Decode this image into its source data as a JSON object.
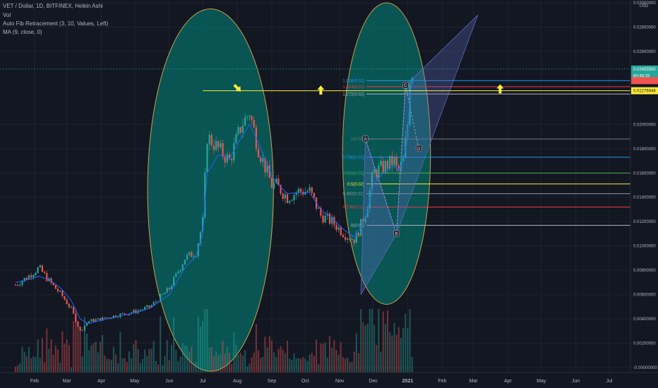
{
  "header": {
    "title": "VET / Dollar, 1D, BITFINEX, Heikin Ashi",
    "indicators": [
      "Vol",
      "Auto Fib Retracement (3, 10, Values, Left)",
      "MA (9, close, 0)"
    ]
  },
  "axis": {
    "currency": "USD",
    "price_ticks": [
      "0.03000000",
      "0.02800000",
      "0.02600000",
      "0.02000000",
      "0.01800000",
      "0.01600000",
      "0.01400000",
      "0.01200000",
      "0.01000000",
      "0.00800000",
      "0.00600000",
      "0.00400000",
      "0.00200000",
      "-0.00000000"
    ],
    "month_ticks": [
      "Feb",
      "Mar",
      "Apr",
      "May",
      "Jun",
      "Jul",
      "Aug",
      "Sep",
      "Oct",
      "Nov",
      "Dec",
      "2021",
      "Feb",
      "Mar",
      "Apr",
      "May",
      "Jun",
      "Jul"
    ]
  },
  "price_tags": [
    {
      "text": "0.02455500",
      "color": "#26a69a"
    },
    {
      "text": "60:48:33",
      "color": "#26a69a"
    },
    {
      "text": "",
      "color": "#ef5350"
    },
    {
      "text": "0.02276948",
      "color": "#ffeb3b"
    }
  ],
  "fib_levels": [
    {
      "label": "1.618(0.02)",
      "price": 0.0236,
      "color": "#2196f3"
    },
    {
      "label": "1.414(0.02)",
      "price": 0.0231,
      "color": "#f23645"
    },
    {
      "label": "1.272(0.02)",
      "price": 0.0225,
      "color": "#b2b5be"
    },
    {
      "label": "1(0.02)",
      "price": 0.0188,
      "color": "#787b86"
    },
    {
      "label": "0.786(0.02)",
      "price": 0.0173,
      "color": "#2196f3"
    },
    {
      "label": "0.618(0.02)",
      "price": 0.016,
      "color": "#4caf50"
    },
    {
      "label": "0.5(0.02)",
      "price": 0.0151,
      "color": "#ffeb3b"
    },
    {
      "label": "0.382(0.01)",
      "price": 0.0143,
      "color": "#9598a1"
    },
    {
      "label": "0.236(0.01)",
      "price": 0.0132,
      "color": "#f23645"
    },
    {
      "label": "0(0.01)",
      "price": 0.0117,
      "color": "#b2b5be"
    }
  ],
  "pattern_points": [
    "A",
    "B",
    "C",
    "D"
  ],
  "colors": {
    "background": "#131722",
    "up": "#26a69a",
    "down": "#ef5350",
    "highlight": "#00897b",
    "resistance": "#ffeb3b",
    "arrow": "#ffeb3b",
    "pattern": "#5c6bc0"
  },
  "chart_data": {
    "type": "candlestick",
    "ylim": [
      0,
      0.03
    ],
    "volume_ylim": [
      0,
      1
    ],
    "x": [
      "2020-01-15",
      "2020-01-25",
      "2020-02-05",
      "2020-02-15",
      "2020-02-25",
      "2020-03-05",
      "2020-03-13",
      "2020-03-20",
      "2020-04-01",
      "2020-04-15",
      "2020-05-01",
      "2020-05-15",
      "2020-06-01",
      "2020-06-15",
      "2020-06-25",
      "2020-07-01",
      "2020-07-05",
      "2020-07-15",
      "2020-07-25",
      "2020-08-05",
      "2020-08-12",
      "2020-08-20",
      "2020-09-01",
      "2020-09-05",
      "2020-09-15",
      "2020-09-25",
      "2020-10-05",
      "2020-10-15",
      "2020-10-25",
      "2020-11-05",
      "2020-11-15",
      "2020-11-25",
      "2020-12-01",
      "2020-12-10",
      "2020-12-20",
      "2020-12-23",
      "2020-12-28",
      "2021-01-01",
      "2021-01-03",
      "2021-01-06"
    ],
    "series": [
      {
        "name": "Heikin Ashi",
        "values": [
          0.0068,
          0.0074,
          0.0082,
          0.007,
          0.006,
          0.0048,
          0.003,
          0.0038,
          0.004,
          0.0043,
          0.0046,
          0.005,
          0.0065,
          0.009,
          0.0095,
          0.012,
          0.019,
          0.018,
          0.017,
          0.02,
          0.021,
          0.018,
          0.015,
          0.015,
          0.014,
          0.0145,
          0.0145,
          0.0125,
          0.012,
          0.011,
          0.0105,
          0.013,
          0.016,
          0.0165,
          0.017,
          0.016,
          0.017,
          0.02,
          0.024,
          0.0245
        ]
      },
      {
        "name": "MA (9, close, 0)",
        "values": [
          0.007,
          0.0072,
          0.0075,
          0.0072,
          0.0065,
          0.0055,
          0.004,
          0.0036,
          0.0039,
          0.0042,
          0.0045,
          0.0049,
          0.006,
          0.0082,
          0.0092,
          0.011,
          0.016,
          0.0175,
          0.0172,
          0.019,
          0.02,
          0.0185,
          0.0158,
          0.0152,
          0.0143,
          0.0144,
          0.0144,
          0.013,
          0.0123,
          0.0113,
          0.0107,
          0.0125,
          0.015,
          0.016,
          0.0166,
          0.0162,
          0.0168,
          0.019,
          0.0225,
          0.0238
        ]
      }
    ]
  }
}
